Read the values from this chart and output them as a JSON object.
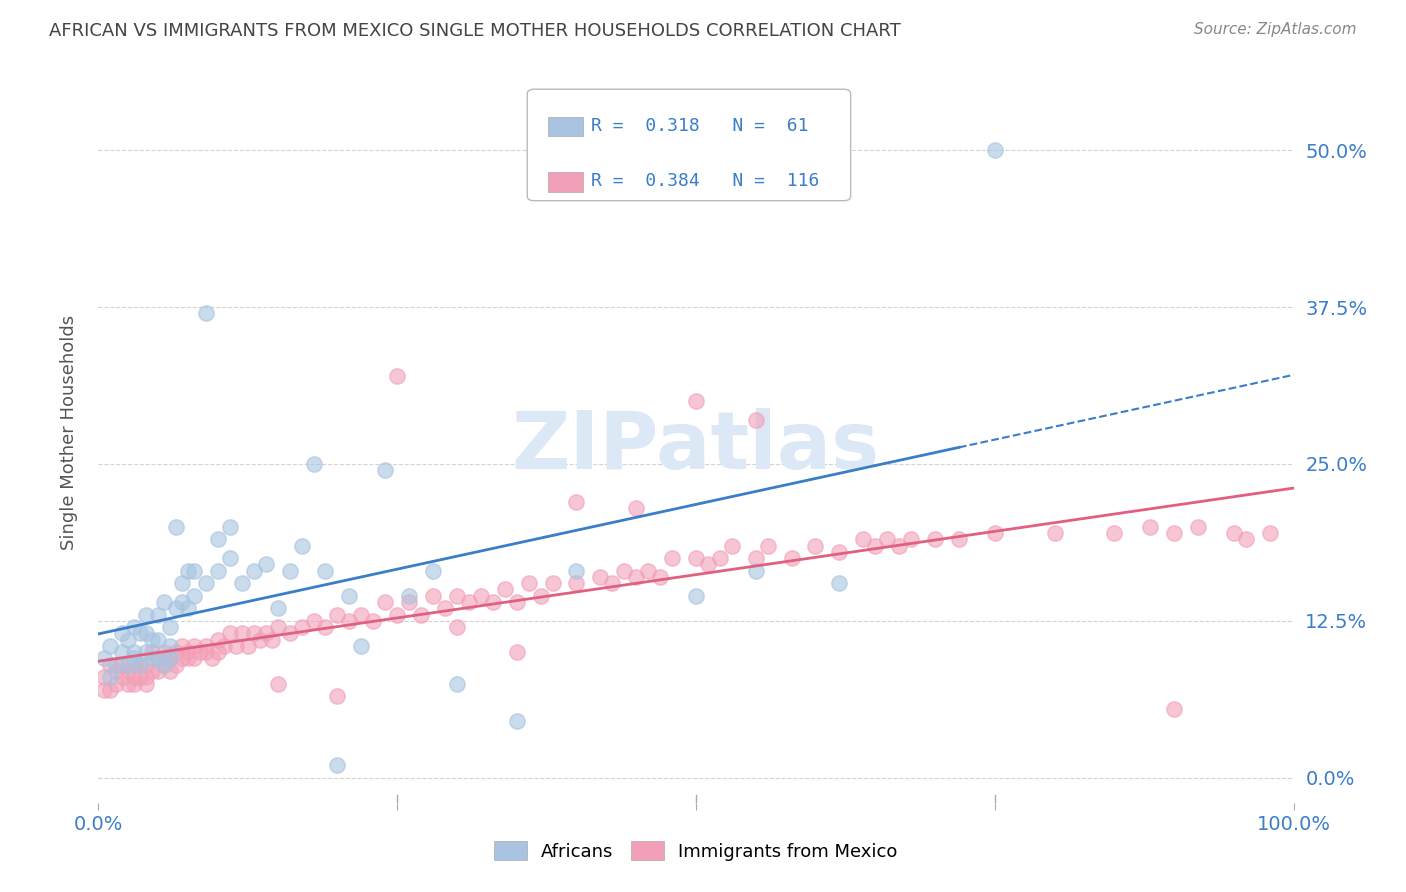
{
  "title": "AFRICAN VS IMMIGRANTS FROM MEXICO SINGLE MOTHER HOUSEHOLDS CORRELATION CHART",
  "source": "Source: ZipAtlas.com",
  "ylabel": "Single Mother Households",
  "ytick_values": [
    0.0,
    0.125,
    0.25,
    0.375,
    0.5
  ],
  "xlim": [
    0.0,
    1.0
  ],
  "ylim": [
    -0.02,
    0.57
  ],
  "african_R": 0.318,
  "african_N": 61,
  "mexico_R": 0.384,
  "mexico_N": 116,
  "african_color": "#a8c4e0",
  "mexico_color": "#f2a0b8",
  "african_line_color": "#3a7dc9",
  "mexico_line_color": "#e06080",
  "watermark": "ZIPatlas",
  "watermark_color": "#dce8f5",
  "legend_text_color": "#3a7dc9",
  "background_color": "#ffffff",
  "grid_color": "#c8c8c8",
  "title_color": "#444444",
  "african_scatter_x": [
    0.005,
    0.01,
    0.01,
    0.015,
    0.02,
    0.02,
    0.025,
    0.025,
    0.03,
    0.03,
    0.03,
    0.035,
    0.035,
    0.04,
    0.04,
    0.04,
    0.045,
    0.045,
    0.05,
    0.05,
    0.05,
    0.055,
    0.055,
    0.06,
    0.06,
    0.06,
    0.065,
    0.065,
    0.07,
    0.07,
    0.075,
    0.075,
    0.08,
    0.08,
    0.09,
    0.09,
    0.1,
    0.1,
    0.11,
    0.11,
    0.12,
    0.13,
    0.14,
    0.15,
    0.16,
    0.17,
    0.18,
    0.19,
    0.2,
    0.21,
    0.22,
    0.24,
    0.26,
    0.28,
    0.3,
    0.35,
    0.4,
    0.5,
    0.55,
    0.62,
    0.75
  ],
  "african_scatter_y": [
    0.095,
    0.105,
    0.08,
    0.09,
    0.1,
    0.115,
    0.09,
    0.11,
    0.095,
    0.12,
    0.1,
    0.09,
    0.115,
    0.1,
    0.115,
    0.13,
    0.11,
    0.095,
    0.13,
    0.11,
    0.095,
    0.09,
    0.14,
    0.12,
    0.105,
    0.095,
    0.2,
    0.135,
    0.14,
    0.155,
    0.165,
    0.135,
    0.145,
    0.165,
    0.37,
    0.155,
    0.165,
    0.19,
    0.175,
    0.2,
    0.155,
    0.165,
    0.17,
    0.135,
    0.165,
    0.185,
    0.25,
    0.165,
    0.01,
    0.145,
    0.105,
    0.245,
    0.145,
    0.165,
    0.075,
    0.045,
    0.165,
    0.145,
    0.165,
    0.155,
    0.5
  ],
  "mexico_scatter_x": [
    0.005,
    0.005,
    0.01,
    0.01,
    0.015,
    0.015,
    0.02,
    0.02,
    0.025,
    0.025,
    0.03,
    0.03,
    0.03,
    0.035,
    0.035,
    0.04,
    0.04,
    0.04,
    0.045,
    0.045,
    0.05,
    0.05,
    0.055,
    0.055,
    0.06,
    0.06,
    0.065,
    0.065,
    0.07,
    0.07,
    0.075,
    0.075,
    0.08,
    0.08,
    0.085,
    0.09,
    0.09,
    0.095,
    0.1,
    0.1,
    0.105,
    0.11,
    0.115,
    0.12,
    0.125,
    0.13,
    0.135,
    0.14,
    0.145,
    0.15,
    0.16,
    0.17,
    0.18,
    0.19,
    0.2,
    0.21,
    0.22,
    0.23,
    0.24,
    0.25,
    0.26,
    0.27,
    0.28,
    0.29,
    0.3,
    0.31,
    0.32,
    0.33,
    0.34,
    0.35,
    0.36,
    0.37,
    0.38,
    0.4,
    0.42,
    0.43,
    0.44,
    0.45,
    0.46,
    0.47,
    0.48,
    0.5,
    0.51,
    0.52,
    0.53,
    0.55,
    0.56,
    0.58,
    0.6,
    0.62,
    0.64,
    0.65,
    0.66,
    0.67,
    0.68,
    0.7,
    0.72,
    0.75,
    0.8,
    0.85,
    0.88,
    0.9,
    0.92,
    0.95,
    0.96,
    0.98,
    0.5,
    0.55,
    0.45,
    0.4,
    0.3,
    0.35,
    0.25,
    0.2,
    0.15,
    0.9
  ],
  "mexico_scatter_y": [
    0.08,
    0.07,
    0.09,
    0.07,
    0.085,
    0.075,
    0.09,
    0.08,
    0.085,
    0.075,
    0.08,
    0.09,
    0.075,
    0.09,
    0.08,
    0.09,
    0.08,
    0.075,
    0.1,
    0.085,
    0.095,
    0.085,
    0.09,
    0.1,
    0.095,
    0.085,
    0.1,
    0.09,
    0.095,
    0.105,
    0.1,
    0.095,
    0.105,
    0.095,
    0.1,
    0.105,
    0.1,
    0.095,
    0.11,
    0.1,
    0.105,
    0.115,
    0.105,
    0.115,
    0.105,
    0.115,
    0.11,
    0.115,
    0.11,
    0.12,
    0.115,
    0.12,
    0.125,
    0.12,
    0.13,
    0.125,
    0.13,
    0.125,
    0.14,
    0.13,
    0.14,
    0.13,
    0.145,
    0.135,
    0.145,
    0.14,
    0.145,
    0.14,
    0.15,
    0.14,
    0.155,
    0.145,
    0.155,
    0.155,
    0.16,
    0.155,
    0.165,
    0.16,
    0.165,
    0.16,
    0.175,
    0.175,
    0.17,
    0.175,
    0.185,
    0.175,
    0.185,
    0.175,
    0.185,
    0.18,
    0.19,
    0.185,
    0.19,
    0.185,
    0.19,
    0.19,
    0.19,
    0.195,
    0.195,
    0.195,
    0.2,
    0.195,
    0.2,
    0.195,
    0.19,
    0.195,
    0.3,
    0.285,
    0.215,
    0.22,
    0.12,
    0.1,
    0.32,
    0.065,
    0.075,
    0.055
  ]
}
